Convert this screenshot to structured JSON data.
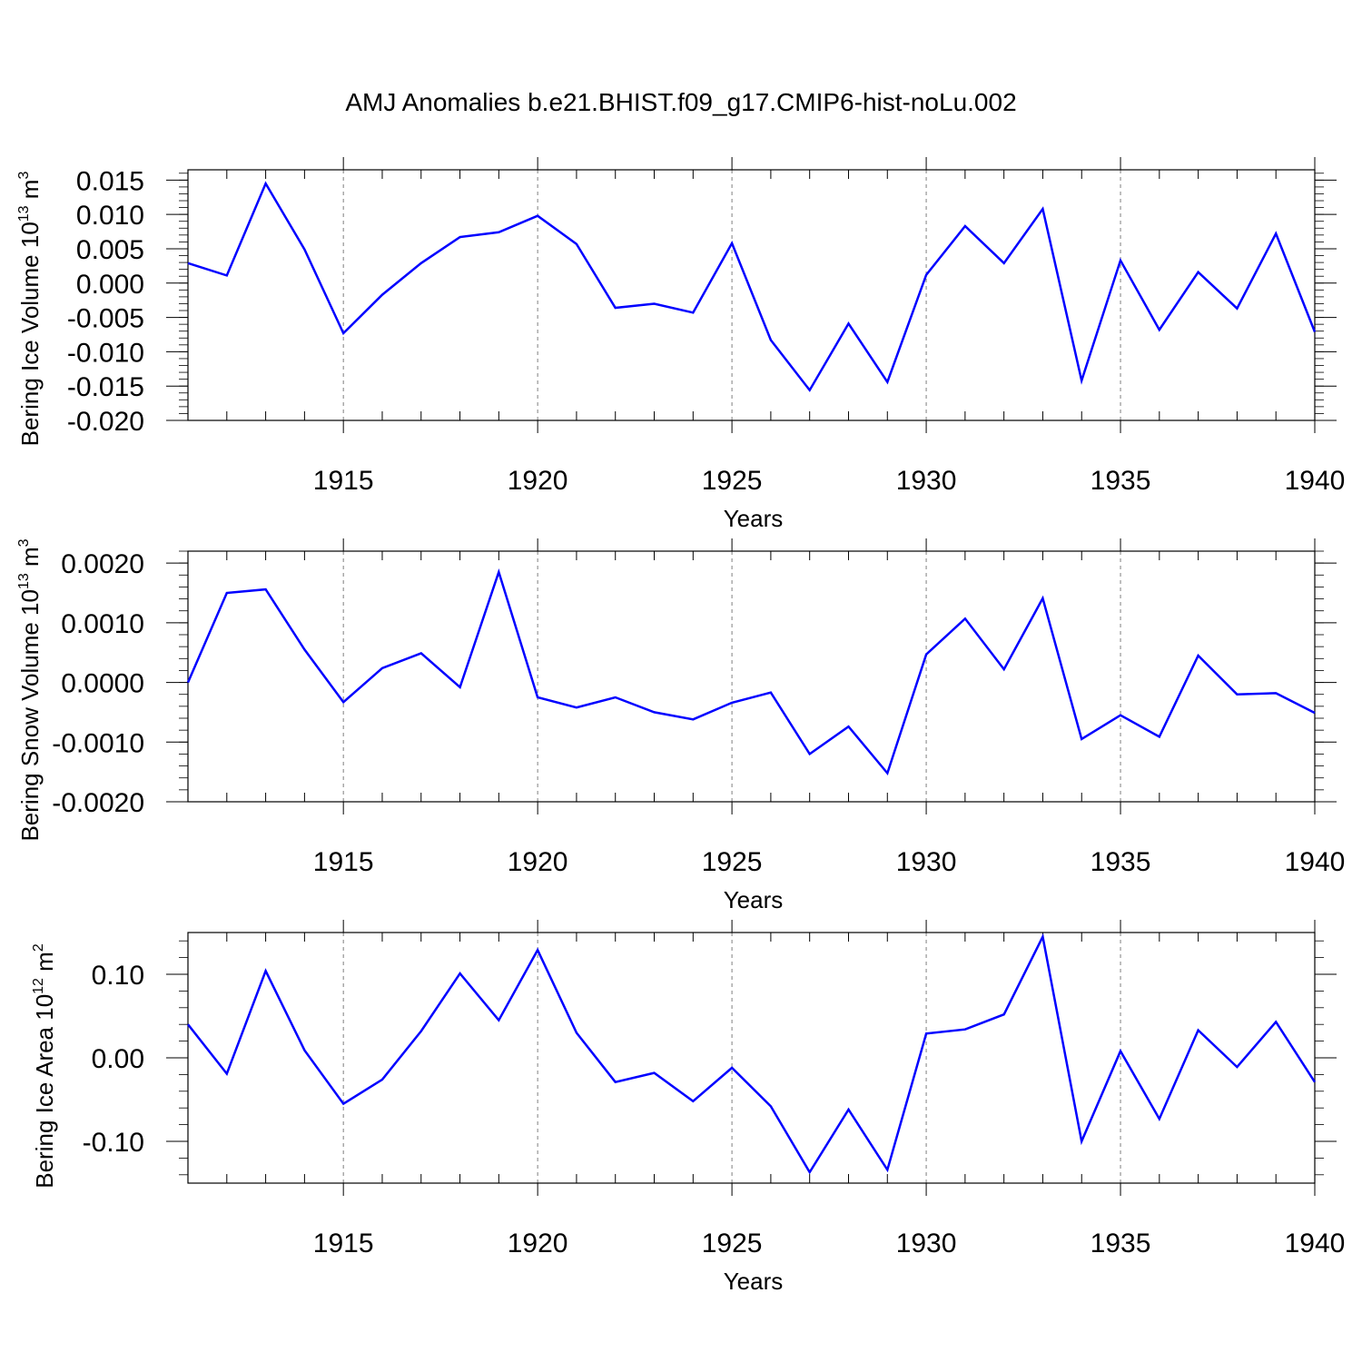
{
  "title": "AMJ Anomalies b.e21.BHIST.f09_g17.CMIP6-hist-noLu.002",
  "colors": {
    "line": "#0000ff",
    "axis": "#000000",
    "grid": "#7f7f7f"
  },
  "chart_data": [
    {
      "type": "line",
      "ylabel": "Bering Ice Volume 10",
      "ylabel_exp": "13",
      "ylabel_unit": "m",
      "ylabel_unit_exp": "3",
      "xlabel": "Years",
      "xlim": [
        1911,
        1940
      ],
      "ylim": [
        -0.02,
        0.0165
      ],
      "x_ticks": [
        1915,
        1920,
        1925,
        1930,
        1935,
        1940
      ],
      "y_ticks": [
        -0.02,
        -0.015,
        -0.01,
        -0.005,
        0.0,
        0.005,
        0.01,
        0.015
      ],
      "y_tick_labels": [
        "-0.020",
        "-0.015",
        "-0.010",
        "-0.005",
        "0.000",
        "0.005",
        "0.010",
        "0.015"
      ],
      "y_minor_step": 0.001,
      "grid": "vertical dashed at major x ticks",
      "x": [
        1911,
        1912,
        1913,
        1914,
        1915,
        1916,
        1917,
        1918,
        1919,
        1920,
        1921,
        1922,
        1923,
        1924,
        1925,
        1926,
        1927,
        1928,
        1929,
        1930,
        1931,
        1932,
        1933,
        1934,
        1935,
        1936,
        1937,
        1938,
        1939,
        1940
      ],
      "values": [
        0.0029,
        0.0011,
        0.0145,
        0.0049,
        -0.0073,
        -0.0017,
        0.0029,
        0.0067,
        0.0074,
        0.0098,
        0.0057,
        -0.0036,
        -0.003,
        -0.0043,
        0.0058,
        -0.0083,
        -0.0156,
        -0.0059,
        -0.0144,
        0.0012,
        0.0083,
        0.0029,
        0.0108,
        -0.0142,
        0.0033,
        -0.0068,
        0.0016,
        -0.0037,
        0.0072,
        -0.0071
      ]
    },
    {
      "type": "line",
      "ylabel": "Bering Snow Volume 10",
      "ylabel_exp": "13",
      "ylabel_unit": "m",
      "ylabel_unit_exp": "3",
      "xlabel": "Years",
      "xlim": [
        1911,
        1940
      ],
      "ylim": [
        -0.002,
        0.0022
      ],
      "x_ticks": [
        1915,
        1920,
        1925,
        1930,
        1935,
        1940
      ],
      "y_ticks": [
        -0.002,
        -0.001,
        0.0,
        0.001,
        0.002
      ],
      "y_tick_labels": [
        "-0.0020",
        "-0.0010",
        "0.0000",
        "0.0010",
        "0.0020"
      ],
      "y_minor_step": 0.0002,
      "grid": "vertical dashed at major x ticks",
      "x": [
        1911,
        1912,
        1913,
        1914,
        1915,
        1916,
        1917,
        1918,
        1919,
        1920,
        1921,
        1922,
        1923,
        1924,
        1925,
        1926,
        1927,
        1928,
        1929,
        1930,
        1931,
        1932,
        1933,
        1934,
        1935,
        1936,
        1937,
        1938,
        1939,
        1940
      ],
      "values": [
        0.0,
        0.0015,
        0.00156,
        0.00055,
        -0.00033,
        0.00024,
        0.00049,
        -8e-05,
        0.00185,
        -0.00025,
        -0.00042,
        -0.00025,
        -0.0005,
        -0.00062,
        -0.00034,
        -0.00017,
        -0.0012,
        -0.00074,
        -0.00152,
        0.00047,
        0.00107,
        0.00022,
        0.00141,
        -0.00095,
        -0.00055,
        -0.00091,
        0.00045,
        -0.0002,
        -0.00018,
        -0.00051
      ]
    },
    {
      "type": "line",
      "ylabel": "Bering Ice Area 10",
      "ylabel_exp": "12",
      "ylabel_unit": "m",
      "ylabel_unit_exp": "2",
      "xlabel": "Years",
      "xlim": [
        1911,
        1940
      ],
      "ylim": [
        -0.15,
        0.15
      ],
      "x_ticks": [
        1915,
        1920,
        1925,
        1930,
        1935,
        1940
      ],
      "y_ticks": [
        -0.1,
        0.0,
        0.1
      ],
      "y_tick_labels": [
        "-0.10",
        "0.00",
        "0.10"
      ],
      "y_minor_step": 0.02,
      "grid": "vertical dashed at major x ticks",
      "x": [
        1911,
        1912,
        1913,
        1914,
        1915,
        1916,
        1917,
        1918,
        1919,
        1920,
        1921,
        1922,
        1923,
        1924,
        1925,
        1926,
        1927,
        1928,
        1929,
        1930,
        1931,
        1932,
        1933,
        1934,
        1935,
        1936,
        1937,
        1938,
        1939,
        1940
      ],
      "values": [
        0.04,
        -0.019,
        0.104,
        0.009,
        -0.055,
        -0.026,
        0.032,
        0.101,
        0.045,
        0.129,
        0.03,
        -0.029,
        -0.018,
        -0.052,
        -0.012,
        -0.058,
        -0.137,
        -0.062,
        -0.134,
        0.029,
        0.034,
        0.052,
        0.145,
        -0.1,
        0.008,
        -0.073,
        0.033,
        -0.011,
        0.043,
        -0.029
      ]
    }
  ]
}
